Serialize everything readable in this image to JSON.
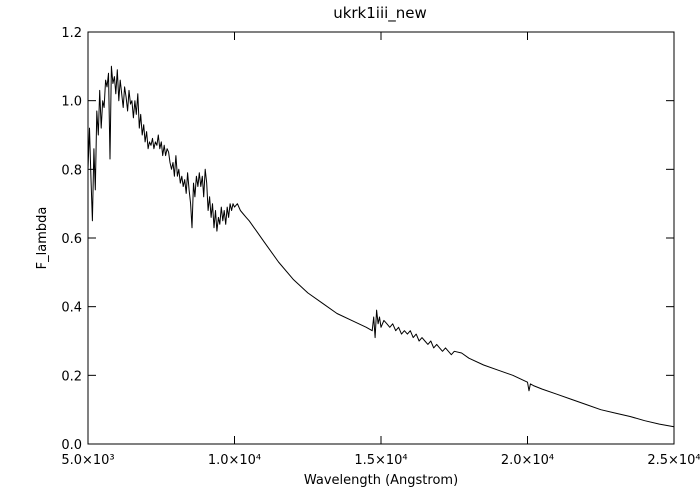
{
  "chart_data": {
    "type": "line",
    "title": "ukrk1iii_new",
    "xlabel": "Wavelength (Angstrom)",
    "ylabel": "F_lambda",
    "xlim": [
      5000,
      25000
    ],
    "ylim": [
      0,
      1.2
    ],
    "x_ticks": [
      {
        "value": 5000,
        "label": "5.0×10³"
      },
      {
        "value": 10000,
        "label": "1.0×10⁴"
      },
      {
        "value": 15000,
        "label": "1.5×10⁴"
      },
      {
        "value": 20000,
        "label": "2.0×10⁴"
      },
      {
        "value": 25000,
        "label": "2.5×10⁴"
      }
    ],
    "y_ticks": [
      {
        "value": 0.0,
        "label": "0.0"
      },
      {
        "value": 0.2,
        "label": "0.2"
      },
      {
        "value": 0.4,
        "label": "0.4"
      },
      {
        "value": 0.6,
        "label": "0.6"
      },
      {
        "value": 0.8,
        "label": "0.8"
      },
      {
        "value": 1.0,
        "label": "1.0"
      },
      {
        "value": 1.2,
        "label": "1.2"
      }
    ],
    "grid": false,
    "legend": "none",
    "line_color": "#000000",
    "series": [
      {
        "x": [
          5000,
          5050,
          5100,
          5150,
          5200,
          5250,
          5300,
          5350,
          5400,
          5450,
          5500,
          5550,
          5600,
          5650,
          5700,
          5750,
          5800,
          5850,
          5900,
          5950,
          6000,
          6050,
          6100,
          6150,
          6200,
          6250,
          6300,
          6350,
          6400,
          6450,
          6500,
          6550,
          6600,
          6650,
          6700,
          6750,
          6800,
          6850,
          6900,
          6950,
          7000,
          7050,
          7100,
          7150,
          7200,
          7250,
          7300,
          7350,
          7400,
          7450,
          7500,
          7550,
          7600,
          7650,
          7700,
          7750,
          7800,
          7850,
          7900,
          7950,
          8000,
          8050,
          8100,
          8150,
          8200,
          8250,
          8300,
          8350,
          8400,
          8450,
          8500,
          8550,
          8600,
          8650,
          8700,
          8750,
          8800,
          8850,
          8900,
          8950,
          9000,
          9050,
          9100,
          9150,
          9200,
          9250,
          9300,
          9350,
          9400,
          9450,
          9500,
          9550,
          9600,
          9650,
          9700,
          9750,
          9800,
          9850,
          9900,
          9950,
          10000,
          10100,
          10200,
          10300,
          10400,
          10500,
          10750,
          11000,
          11500,
          12000,
          12500,
          13000,
          13500,
          14000,
          14500,
          14700,
          14750,
          14800,
          14850,
          14900,
          14950,
          15000,
          15100,
          15200,
          15300,
          15400,
          15500,
          15600,
          15700,
          15800,
          15900,
          16000,
          16100,
          16200,
          16300,
          16400,
          16500,
          16600,
          16700,
          16800,
          16900,
          17000,
          17100,
          17200,
          17300,
          17400,
          17500,
          17750,
          18000,
          18500,
          19000,
          19500,
          20000,
          20050,
          20100,
          20200,
          20500,
          21000,
          21500,
          22000,
          22500,
          23000,
          23500,
          24000,
          24500,
          25000
        ],
        "y": [
          0.8,
          0.92,
          0.78,
          0.65,
          0.86,
          0.74,
          0.97,
          0.9,
          1.03,
          0.92,
          1.0,
          0.98,
          1.06,
          1.04,
          1.08,
          0.83,
          1.1,
          1.05,
          1.07,
          1.02,
          1.09,
          1.0,
          1.06,
          1.02,
          0.98,
          1.04,
          1.01,
          0.97,
          1.03,
          0.99,
          1.0,
          0.95,
          1.0,
          0.96,
          1.02,
          0.92,
          0.96,
          0.9,
          0.93,
          0.88,
          0.91,
          0.86,
          0.88,
          0.87,
          0.89,
          0.86,
          0.88,
          0.87,
          0.9,
          0.86,
          0.88,
          0.84,
          0.87,
          0.84,
          0.86,
          0.85,
          0.82,
          0.8,
          0.82,
          0.78,
          0.84,
          0.78,
          0.8,
          0.76,
          0.78,
          0.75,
          0.77,
          0.73,
          0.79,
          0.74,
          0.7,
          0.63,
          0.76,
          0.72,
          0.78,
          0.75,
          0.79,
          0.75,
          0.78,
          0.72,
          0.8,
          0.76,
          0.68,
          0.72,
          0.66,
          0.7,
          0.63,
          0.68,
          0.62,
          0.66,
          0.64,
          0.69,
          0.65,
          0.68,
          0.64,
          0.69,
          0.66,
          0.7,
          0.68,
          0.7,
          0.69,
          0.7,
          0.68,
          0.67,
          0.66,
          0.65,
          0.62,
          0.59,
          0.53,
          0.48,
          0.44,
          0.41,
          0.38,
          0.36,
          0.34,
          0.33,
          0.37,
          0.31,
          0.39,
          0.35,
          0.37,
          0.34,
          0.36,
          0.35,
          0.34,
          0.35,
          0.33,
          0.34,
          0.32,
          0.33,
          0.32,
          0.33,
          0.31,
          0.32,
          0.3,
          0.31,
          0.3,
          0.29,
          0.3,
          0.28,
          0.29,
          0.28,
          0.27,
          0.28,
          0.27,
          0.26,
          0.27,
          0.265,
          0.25,
          0.23,
          0.215,
          0.2,
          0.18,
          0.155,
          0.175,
          0.17,
          0.16,
          0.145,
          0.13,
          0.115,
          0.1,
          0.09,
          0.08,
          0.068,
          0.058,
          0.05
        ]
      }
    ]
  }
}
